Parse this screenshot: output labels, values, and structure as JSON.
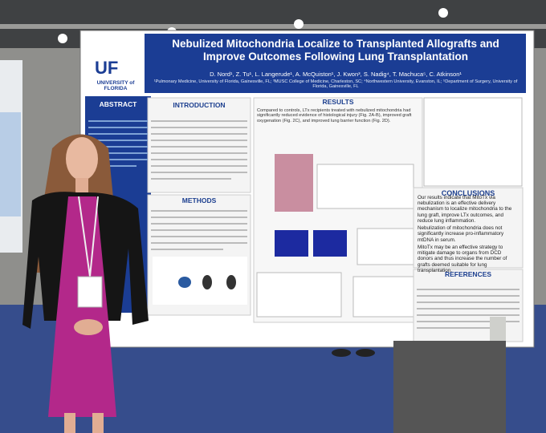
{
  "poster": {
    "title": "Nebulized Mitochondria Localize to Transplanted Allografts and Improve Outcomes Following Lung Transplantation",
    "authors": "D. Nord¹, Z. Tu¹, L. Langerude¹, A. McQuiston¹, J. Kwon³, S. Nadig⁴, T. Machuca⁵, C. Atkinson¹",
    "affiliations": "¹Pulmonary Medicine, University of Florida, Gainesville, FL; ³MUSC College of Medicine, Charleston, SC; ⁴Northwestern University, Evanston, IL; ⁵Department of Surgery, University of Florida, Gainesville, FL",
    "logo": {
      "mark": "UF",
      "name": "UNIVERSITY of FLORIDA"
    },
    "sections": {
      "abstract": "ABSTRACT",
      "introduction": "INTRODUCTION",
      "results": "RESULTS",
      "methods": "METHODS",
      "conclusions": "CONCLUSIONS",
      "references": "REFERENCES"
    },
    "results_intro": "Compared to controls, LTx recipients treated with nebulized mitochondria had significantly reduced evidence of histological injury (Fig. 2A-B), improved graft oxygenation (Fig. 2C), and improved lung barrier function (Fig. 2D).",
    "conclusions": [
      "Our results indicate that MitoTx via nebulization is an effective delivery mechanism to localize mitochondria to the lung graft, improve LTx outcomes, and reduce lung inflammation.",
      "Nebulization of mitochondria does not significantly increase pro-inflammatory mtDNA in serum.",
      "MitoTx may be an effective strategy to mitigate damage to organs from DCD donors and thus increase the number of grafts deemed suitable for lung transplantation."
    ]
  }
}
